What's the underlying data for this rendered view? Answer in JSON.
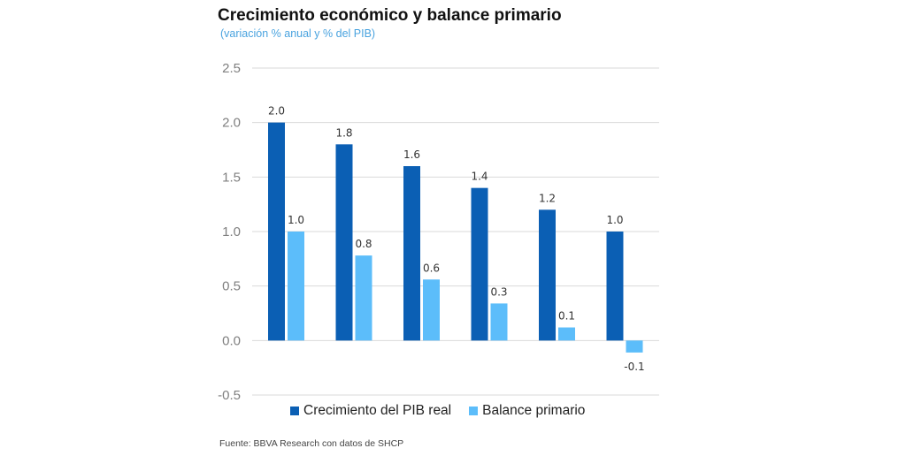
{
  "colors": {
    "series1": "#0b5fb4",
    "series2": "#5cbdfa",
    "grid": "#d9d9d9",
    "subtitle": "#4aa3df"
  },
  "chart_data": {
    "type": "bar",
    "title": "Crecimiento económico y balance primario",
    "subtitle": "(variación % anual y % del PIB)",
    "categories": [
      "",
      "",
      "",
      "",
      "",
      ""
    ],
    "series": [
      {
        "name": "Crecimiento del PIB real",
        "values": [
          2.0,
          1.8,
          1.6,
          1.4,
          1.2,
          1.0
        ],
        "labels": [
          "2.0",
          "1.8",
          "1.6",
          "1.4",
          "1.2",
          "1.0"
        ]
      },
      {
        "name": "Balance primario",
        "values": [
          1.0,
          0.78,
          0.56,
          0.34,
          0.12,
          -0.11
        ],
        "labels": [
          "1.0",
          "0.8",
          "0.6",
          "0.3",
          "0.1",
          "-0.1"
        ]
      }
    ],
    "ylim": [
      -0.5,
      2.5
    ],
    "yticks": [
      "2.5",
      "2.0",
      "1.5",
      "1.0",
      "0.5",
      "0.0",
      "-0.5"
    ],
    "ytick_values": [
      2.5,
      2.0,
      1.5,
      1.0,
      0.5,
      0.0,
      -0.5
    ],
    "grid": true,
    "legend_position": "bottom",
    "source": "Fuente: BBVA Research con datos de SHCP"
  }
}
